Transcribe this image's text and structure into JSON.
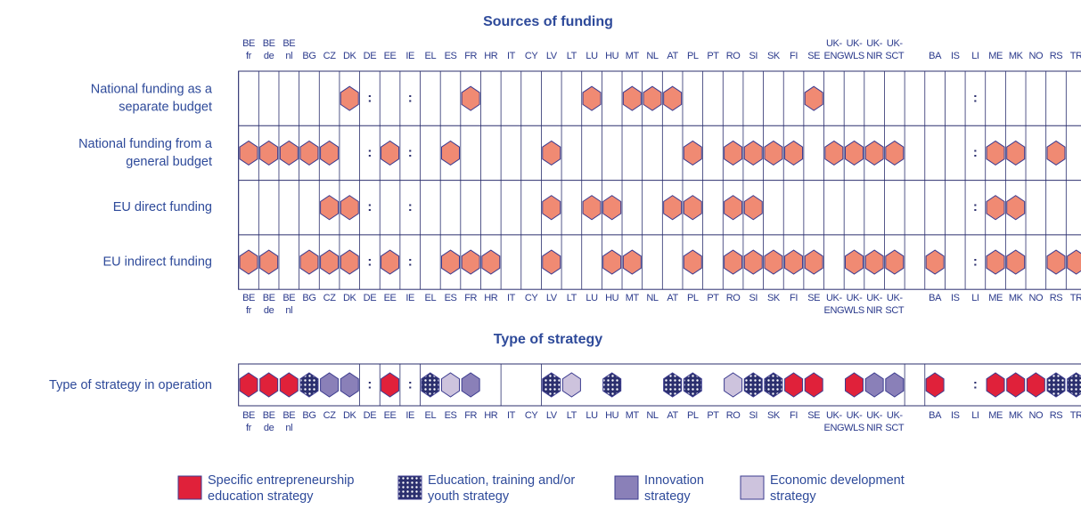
{
  "title": "Sources of funding",
  "strategy_title": "Type of strategy",
  "countries": [
    [
      "BE",
      "fr"
    ],
    [
      "BE",
      "de"
    ],
    [
      "BE",
      "nl"
    ],
    [
      "BG"
    ],
    [
      "CZ"
    ],
    [
      "DK"
    ],
    [
      "DE"
    ],
    [
      "EE"
    ],
    [
      "IE"
    ],
    [
      "EL"
    ],
    [
      "ES"
    ],
    [
      "FR"
    ],
    [
      "HR"
    ],
    [
      "IT"
    ],
    [
      "CY"
    ],
    [
      "LV"
    ],
    [
      "LT"
    ],
    [
      "LU"
    ],
    [
      "HU"
    ],
    [
      "MT"
    ],
    [
      "NL"
    ],
    [
      "AT"
    ],
    [
      "PL"
    ],
    [
      "PT"
    ],
    [
      "RO"
    ],
    [
      "SI"
    ],
    [
      "SK"
    ],
    [
      "FI"
    ],
    [
      "SE"
    ],
    [
      "UK-",
      "ENG"
    ],
    [
      "UK-",
      "WLS"
    ],
    [
      "UK-",
      "NIR"
    ],
    [
      "UK-",
      "SCT"
    ],
    null,
    [
      "BA"
    ],
    [
      "IS"
    ],
    [
      "LI"
    ],
    [
      "ME"
    ],
    [
      "MK"
    ],
    [
      "NO"
    ],
    [
      "RS"
    ],
    [
      "TR"
    ]
  ],
  "funding_rows": [
    {
      "label": [
        "National funding as a",
        "separate budget"
      ],
      "cells": [
        null,
        null,
        null,
        null,
        null,
        1,
        ":",
        null,
        ":",
        null,
        null,
        1,
        null,
        null,
        null,
        null,
        null,
        1,
        null,
        1,
        1,
        1,
        null,
        null,
        null,
        null,
        null,
        null,
        1,
        null,
        null,
        null,
        null,
        null,
        null,
        null,
        ":",
        null,
        null,
        null,
        null,
        null
      ]
    },
    {
      "label": [
        "National funding from a",
        "general budget"
      ],
      "cells": [
        1,
        1,
        1,
        1,
        1,
        null,
        ":",
        1,
        ":",
        null,
        1,
        null,
        null,
        null,
        null,
        1,
        null,
        null,
        null,
        null,
        null,
        null,
        1,
        null,
        1,
        1,
        1,
        1,
        null,
        1,
        1,
        1,
        1,
        null,
        null,
        null,
        ":",
        1,
        1,
        null,
        1,
        null
      ]
    },
    {
      "label": [
        "EU direct funding"
      ],
      "cells": [
        null,
        null,
        null,
        null,
        1,
        1,
        ":",
        null,
        ":",
        null,
        null,
        null,
        null,
        null,
        null,
        1,
        null,
        1,
        1,
        null,
        null,
        1,
        1,
        null,
        1,
        1,
        null,
        null,
        null,
        null,
        null,
        null,
        null,
        null,
        null,
        null,
        ":",
        1,
        1,
        null,
        null,
        null
      ]
    },
    {
      "label": [
        "EU indirect funding"
      ],
      "cells": [
        1,
        1,
        null,
        1,
        1,
        1,
        ":",
        1,
        ":",
        null,
        1,
        1,
        1,
        null,
        null,
        1,
        null,
        null,
        1,
        1,
        null,
        null,
        1,
        null,
        1,
        1,
        1,
        1,
        1,
        null,
        1,
        1,
        1,
        null,
        1,
        null,
        ":",
        1,
        1,
        null,
        1,
        1
      ]
    }
  ],
  "strategy_row": {
    "label": "Type of strategy in operation",
    "cells": [
      0,
      0,
      0,
      1,
      2,
      2,
      ":",
      0,
      ":",
      1,
      3,
      2,
      null,
      null,
      null,
      1,
      3,
      null,
      1,
      null,
      null,
      1,
      1,
      null,
      3,
      1,
      1,
      0,
      0,
      null,
      0,
      2,
      2,
      null,
      0,
      null,
      ":",
      0,
      0,
      0,
      1,
      1
    ]
  },
  "funding_color": "#f08a73",
  "legend": [
    {
      "lines": [
        "Specific entrepreneurship",
        "education strategy"
      ],
      "color": "#e0213a"
    },
    {
      "lines": [
        "Education, training and/or",
        "youth strategy"
      ],
      "color": "pattern"
    },
    {
      "lines": [
        "Innovation",
        "strategy"
      ],
      "color": "#8a80b8"
    },
    {
      "lines": [
        "Economic development",
        "strategy"
      ],
      "color": "#cdc3dd"
    }
  ]
}
